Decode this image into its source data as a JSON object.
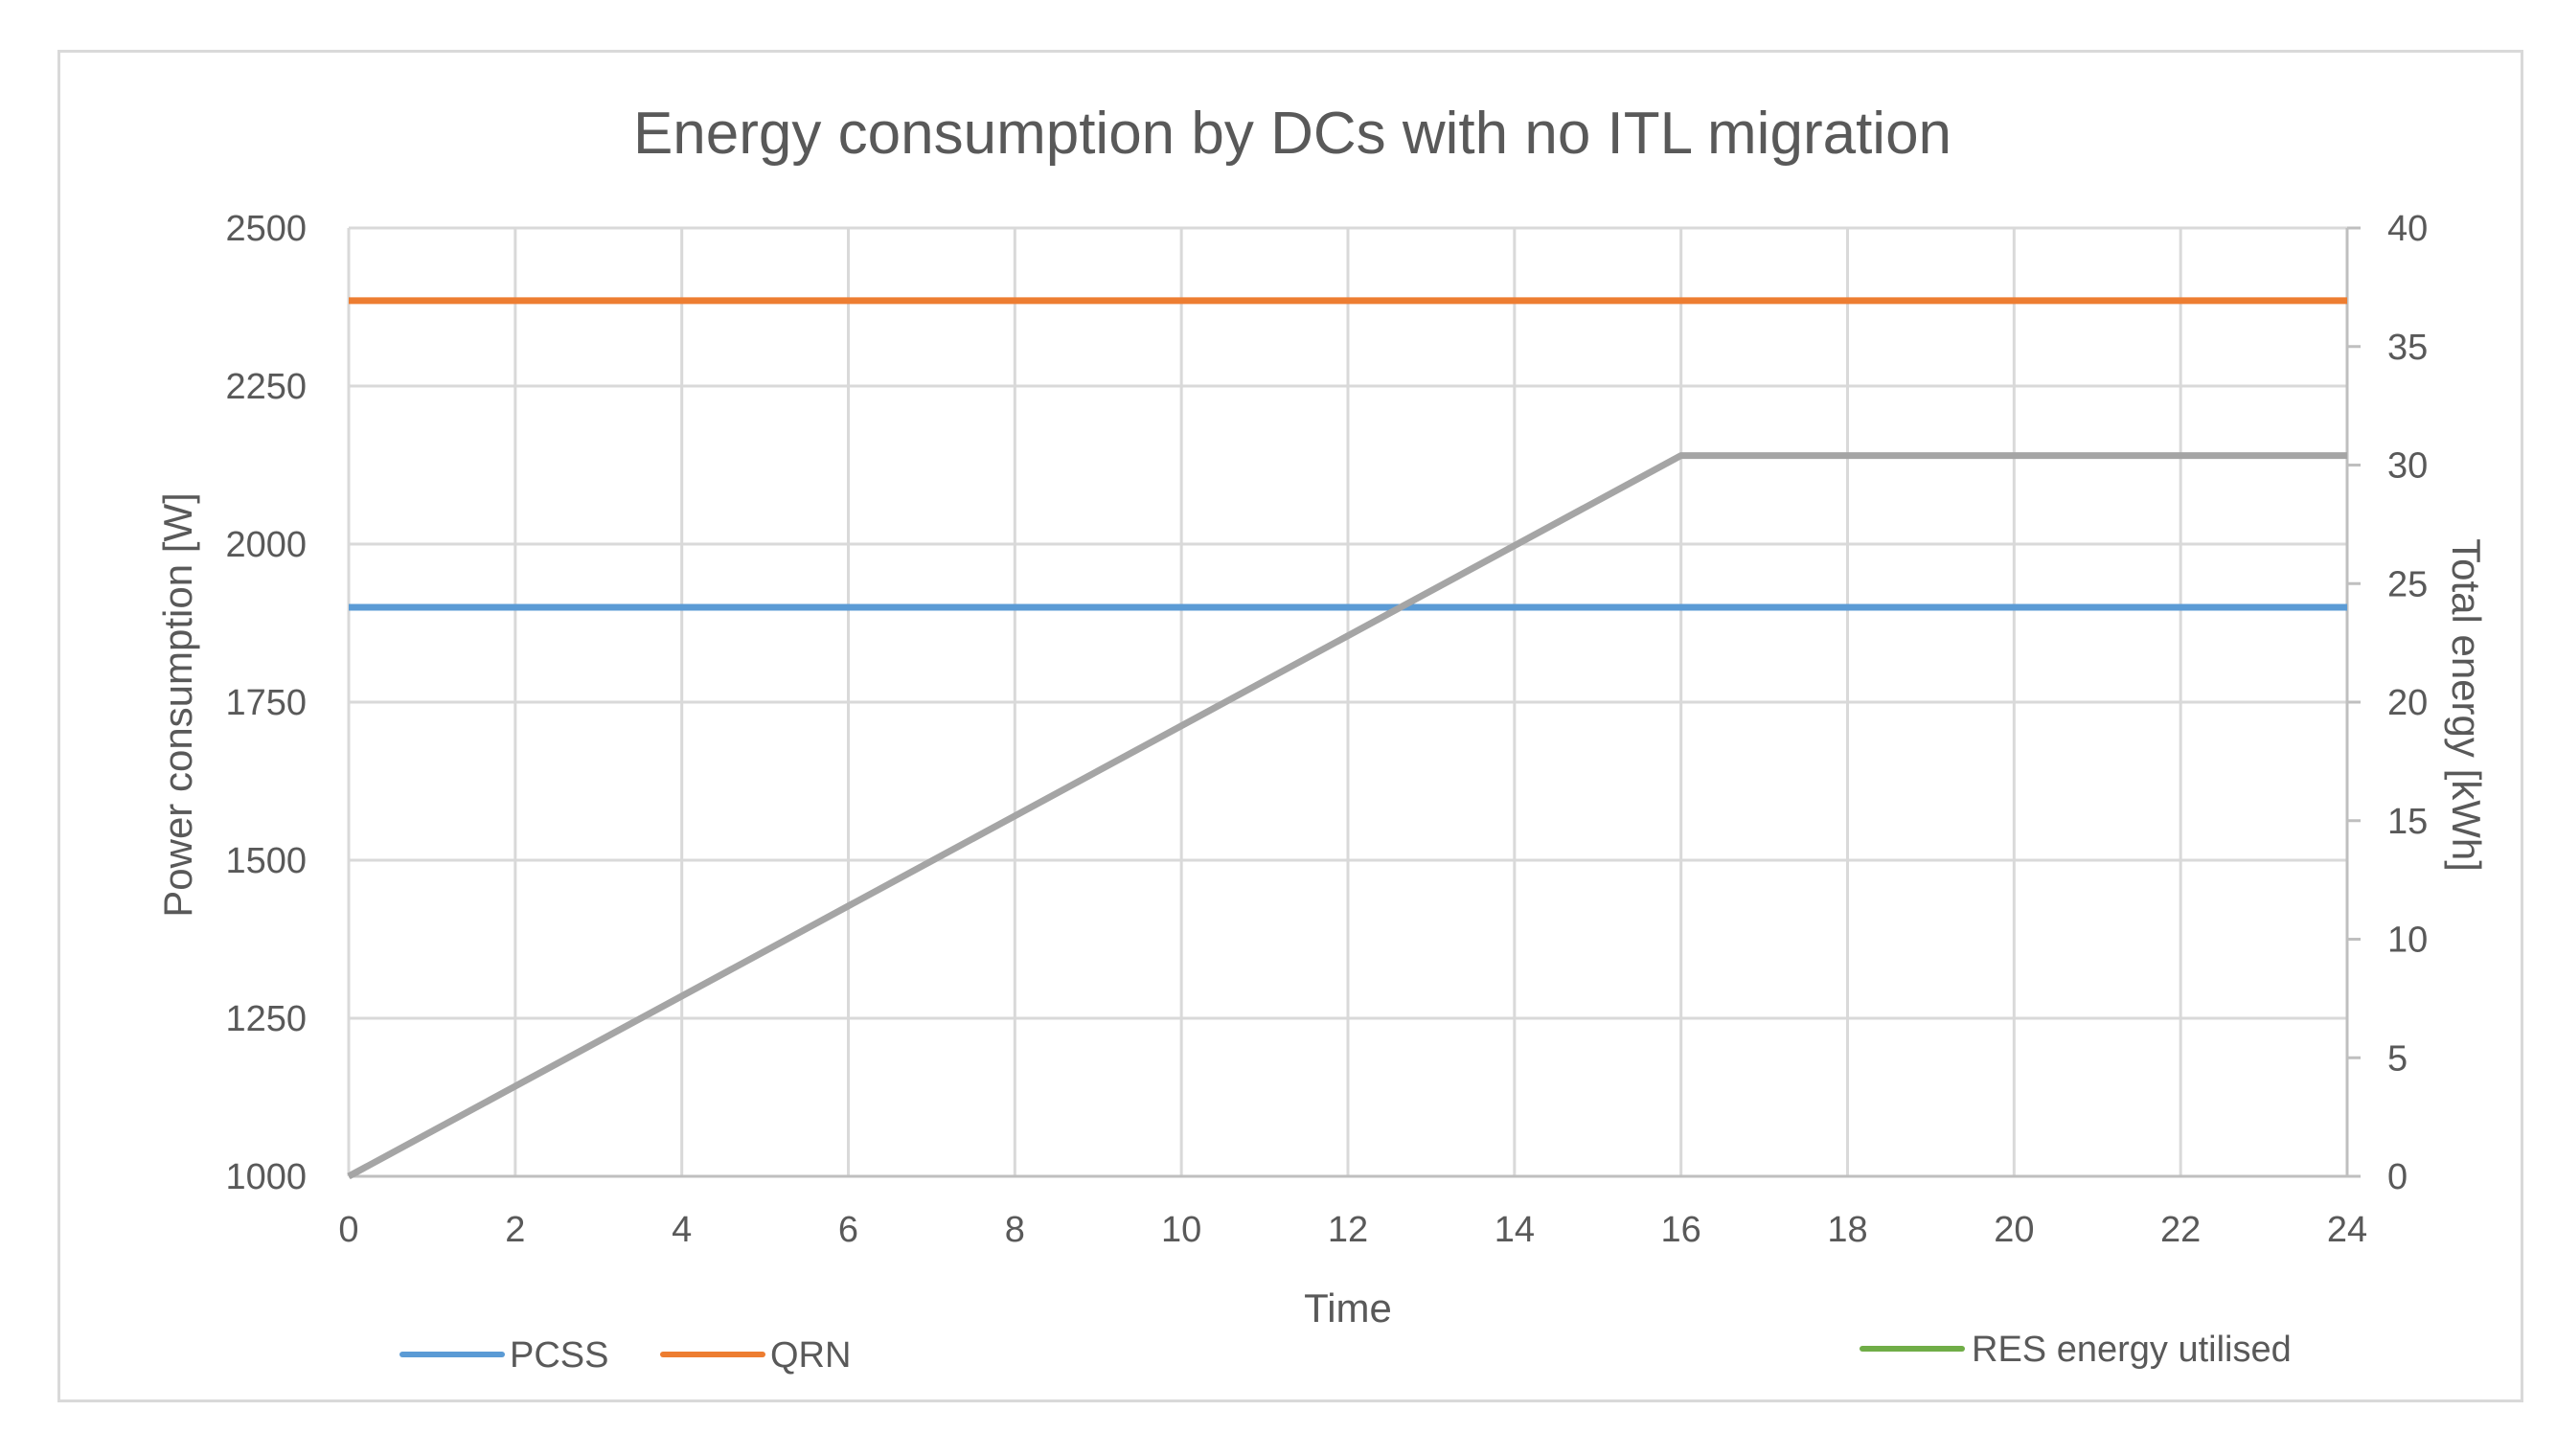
{
  "chart_data": {
    "type": "line",
    "title": "Energy consumption by DCs with no ITL migration",
    "xlabel": "Time",
    "ylabel": "Power consumption [W]",
    "y2label": "Total energy [kWh]",
    "xlim": [
      0,
      24
    ],
    "ylim": [
      1000,
      2500
    ],
    "y2lim": [
      0,
      40
    ],
    "x_ticks": [
      "0",
      "2",
      "4",
      "6",
      "8",
      "10",
      "12",
      "14",
      "16",
      "18",
      "20",
      "22",
      "24"
    ],
    "y_ticks": [
      "1000",
      "1250",
      "1500",
      "1750",
      "2000",
      "2250",
      "2500"
    ],
    "y2_ticks": [
      "0",
      "5",
      "10",
      "15",
      "20",
      "25",
      "30",
      "35",
      "40"
    ],
    "grid": true,
    "series": [
      {
        "name": "PCSS",
        "axis": "left",
        "color": "#5b9bd5",
        "x": [
          0,
          24
        ],
        "values": [
          1900,
          1900
        ]
      },
      {
        "name": "QRN",
        "axis": "left",
        "color": "#ed7d31",
        "x": [
          0,
          24
        ],
        "values": [
          2385,
          2385
        ]
      },
      {
        "name": "",
        "axis": "right",
        "color": "#a5a5a5",
        "x": [
          0,
          16,
          24
        ],
        "values": [
          0,
          30.4,
          30.4
        ]
      },
      {
        "name": "RES energy utilised",
        "axis": "right",
        "color": "#70ad47",
        "x": [],
        "values": []
      }
    ],
    "legend": {
      "items": [
        {
          "label": "PCSS",
          "color": "#5b9bd5"
        },
        {
          "label": "QRN",
          "color": "#ed7d31"
        },
        {
          "label": "RES energy utilised",
          "color": "#70ad47"
        }
      ],
      "position": "bottom"
    }
  }
}
